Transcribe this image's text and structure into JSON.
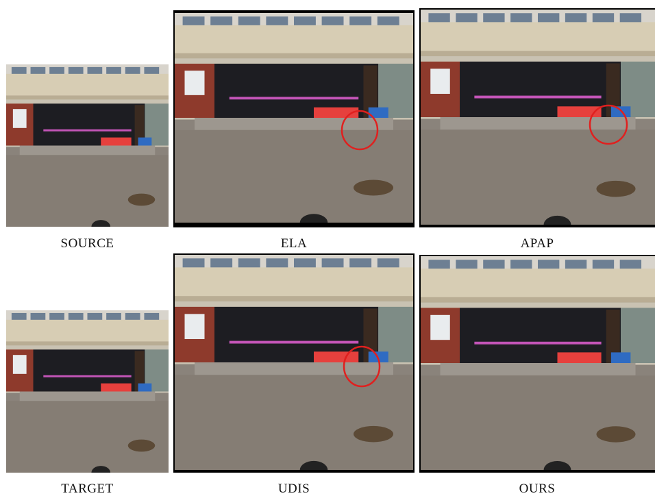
{
  "panels": [
    {
      "label": "SOURCE"
    },
    {
      "label": "ELA"
    },
    {
      "label": "APAP"
    },
    {
      "label": "TARGET"
    },
    {
      "label": "UDIS"
    },
    {
      "label": "OURS"
    }
  ]
}
